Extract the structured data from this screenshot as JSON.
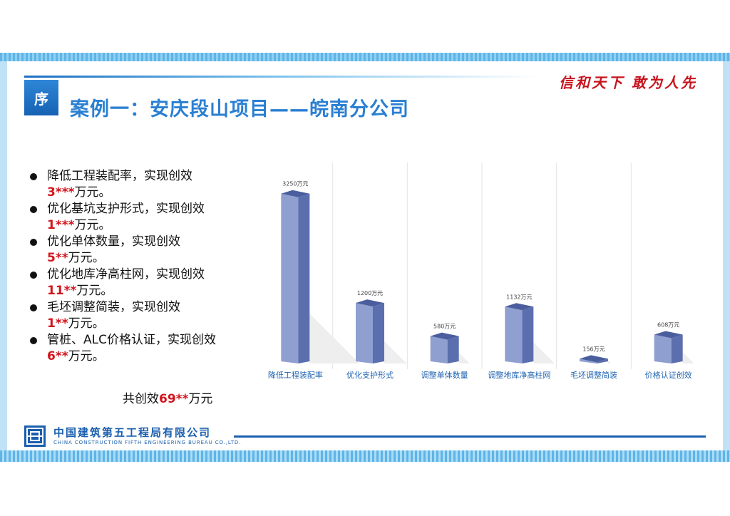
{
  "header": {
    "section_badge": "序",
    "title": "案例一：安庆段山项目——皖南分公司",
    "slogan": "信和天下 敢为人先"
  },
  "bullets": [
    {
      "text": "降低工程装配率，实现创效",
      "value": "3***",
      "unit": "万元。"
    },
    {
      "text": "优化基坑支护形式，实现创效",
      "value": "1***",
      "unit": "万元。"
    },
    {
      "text": "优化单体数量，实现创效",
      "value": "5**",
      "unit": "万元。"
    },
    {
      "text": "优化地库净高柱网，实现创效",
      "value": "11**",
      "unit": "万元。"
    },
    {
      "text": "毛坯调整简装，实现创效",
      "value": "1**",
      "unit": "万元。"
    },
    {
      "text": "管桩、ALC价格认证，实现创效",
      "value": "6**",
      "unit": "万元。"
    }
  ],
  "total": {
    "prefix": "共创效",
    "value": "69**",
    "unit": "万元"
  },
  "chart_data": {
    "type": "bar",
    "categories": [
      "降低工程装配率",
      "优化支护形式",
      "调整单体数量",
      "调整地库净高柱网",
      "毛坯调整简装",
      "价格认证创效"
    ],
    "values": [
      3250,
      1200,
      580,
      1132,
      156,
      608
    ],
    "data_labels": [
      "3250万元",
      "1200万元",
      "580万元",
      "1132万元",
      "156万元",
      "608万元"
    ],
    "ylim": [
      0,
      3500
    ],
    "grid": true,
    "legend": "none",
    "colors": {
      "bar_front": "#8e9fd0",
      "bar_side": "#5b6fae",
      "bar_top": "#4a5e9e",
      "label": "#1f62b0"
    }
  },
  "footer": {
    "company_cn": "中国建筑第五工程局有限公司",
    "company_en": "CHINA CONSTRUCTION FIFTH ENGINEERING BUREAU CO.,LTD.",
    "logo_icon": "cscec-logo-icon"
  }
}
